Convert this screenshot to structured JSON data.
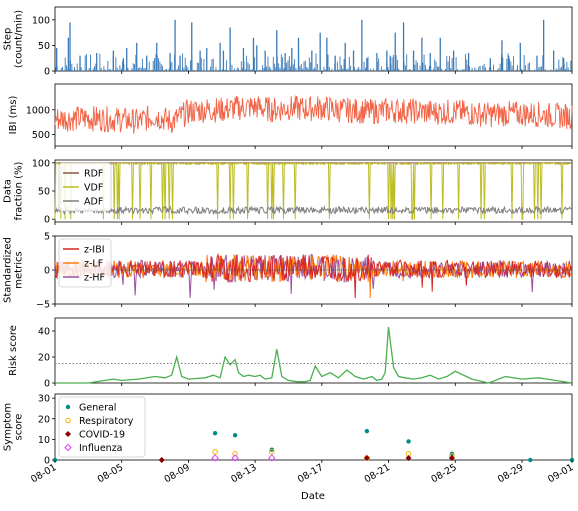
{
  "x_axis": {
    "label": "Date",
    "tick_labels": [
      "08-01",
      "08-05",
      "08-09",
      "08-13",
      "08-17",
      "08-21",
      "08-25",
      "08-29",
      "09-01"
    ],
    "tick_days": [
      0,
      4,
      8,
      12,
      16,
      20,
      24,
      28,
      31
    ],
    "range_days": [
      0,
      31
    ]
  },
  "chart_data": [
    {
      "type": "bar",
      "ylabel_lines": [
        "Step",
        "(count/min)"
      ],
      "ylim": [
        0,
        125
      ],
      "yticks": [
        0,
        50,
        100
      ],
      "ytick_labels": [
        "0",
        "50",
        "100"
      ],
      "color": "#3a7ab8",
      "series": [
        {
          "x_days": [
            0.1,
            0.8,
            0.9,
            1.5,
            2.5,
            3.5,
            4.1,
            4.3,
            4.9,
            5.5,
            6.1,
            6.9,
            7.2,
            7.5,
            8.2,
            8.7,
            9.1,
            9.9,
            10.1,
            10.5,
            11.3,
            11.9,
            12.1,
            12.6,
            13.3,
            13.8,
            14.2,
            14.6,
            15.4,
            15.9,
            16.3,
            16.8,
            17.4,
            17.9,
            18.4,
            18.7,
            19.3,
            19.9,
            20.1,
            20.4,
            20.9,
            21.5,
            22.0,
            22.5,
            23.1,
            23.9,
            24.8,
            26.1,
            26.8,
            27.2,
            27.9,
            28.9,
            29.3,
            29.9,
            30.5
          ],
          "values": [
            45,
            65,
            95,
            30,
            35,
            40,
            25,
            45,
            55,
            30,
            55,
            35,
            100,
            30,
            95,
            40,
            45,
            55,
            40,
            85,
            45,
            65,
            50,
            40,
            80,
            35,
            45,
            65,
            40,
            75,
            65,
            30,
            55,
            40,
            100,
            25,
            35,
            40,
            30,
            75,
            95,
            40,
            65,
            35,
            65,
            40,
            35,
            25,
            60,
            30,
            55,
            30,
            100,
            40,
            25
          ]
        }
      ]
    },
    {
      "type": "line",
      "ylabel_lines": [
        "IBI (ms)"
      ],
      "ylim": [
        270,
        1520
      ],
      "yticks": [
        500,
        1000
      ],
      "ytick_labels": [
        "500",
        "1000"
      ],
      "color": "#f26448",
      "baseline": [
        [
          0,
          820
        ],
        [
          2,
          830
        ],
        [
          4,
          800
        ],
        [
          5,
          760
        ],
        [
          6,
          880
        ],
        [
          7,
          760
        ],
        [
          8,
          960
        ],
        [
          9,
          1000
        ],
        [
          10,
          1000
        ],
        [
          11,
          1040
        ],
        [
          12,
          1060
        ],
        [
          13,
          1000
        ],
        [
          14,
          1040
        ],
        [
          15,
          1020
        ],
        [
          16,
          1040
        ],
        [
          17,
          1000
        ],
        [
          18,
          980
        ],
        [
          19,
          960
        ],
        [
          20,
          990
        ],
        [
          21,
          980
        ],
        [
          22,
          960
        ],
        [
          23,
          950
        ],
        [
          24,
          960
        ],
        [
          25,
          930
        ],
        [
          26,
          900
        ],
        [
          27,
          920
        ],
        [
          28,
          920
        ],
        [
          29,
          910
        ],
        [
          30,
          880
        ],
        [
          31,
          870
        ]
      ]
    },
    {
      "type": "line",
      "ylabel_lines": [
        "Data",
        "fraction (%)"
      ],
      "ylim": [
        -5,
        105
      ],
      "yticks": [
        0,
        50,
        100
      ],
      "ytick_labels": [
        "0",
        "50",
        "100"
      ],
      "series": [
        {
          "name": "RDF",
          "color": "#8c564b"
        },
        {
          "name": "VDF",
          "color": "#bcbd22"
        },
        {
          "name": "ADF",
          "color": "#7f7f7f"
        }
      ]
    },
    {
      "type": "line",
      "ylabel_lines": [
        "Standardized",
        "metrics"
      ],
      "ylim": [
        -5,
        5
      ],
      "yticks": [
        -5,
        0,
        5
      ],
      "ytick_labels": [
        "−5",
        "0",
        "5"
      ],
      "series": [
        {
          "name": "z-IBI",
          "color": "#d62728"
        },
        {
          "name": "z-LF",
          "color": "#ff7f0e"
        },
        {
          "name": "z-HF",
          "color": "#9b4ea0"
        }
      ]
    },
    {
      "type": "line",
      "ylabel_lines": [
        "Risk score"
      ],
      "ylim": [
        0,
        50
      ],
      "yticks": [
        0,
        20,
        40
      ],
      "ytick_labels": [
        "0",
        "20",
        "40"
      ],
      "color": "#4caf50",
      "threshold": 15,
      "series": [
        {
          "x_days": [
            0,
            1,
            2,
            3,
            3.5,
            4,
            5,
            6,
            6.6,
            7,
            7.3,
            7.6,
            8,
            9,
            9.5,
            9.9,
            10.2,
            10.5,
            10.8,
            11,
            11.3,
            11.6,
            12,
            12.3,
            12.6,
            13,
            13.3,
            13.6,
            14,
            14.5,
            15,
            15.3,
            15.6,
            16,
            16.5,
            17,
            17.5,
            18,
            18.5,
            19,
            19.3,
            19.6,
            19.8,
            20,
            20.3,
            20.6,
            21,
            21.5,
            22,
            22.5,
            23,
            23.5,
            24,
            25,
            26,
            27,
            28,
            29,
            30,
            31
          ],
          "values": [
            0,
            0,
            0,
            2,
            3,
            2,
            3,
            5,
            4,
            6,
            20,
            5,
            3,
            4,
            6,
            4,
            20,
            14,
            18,
            8,
            5,
            6,
            5,
            6,
            3,
            4,
            26,
            5,
            2,
            1,
            1,
            2,
            13,
            5,
            8,
            4,
            10,
            5,
            3,
            5,
            2,
            3,
            8,
            43,
            12,
            5,
            4,
            3,
            4,
            6,
            3,
            5,
            9,
            3,
            0,
            5,
            3,
            4,
            2,
            0
          ]
        }
      ]
    },
    {
      "type": "scatter",
      "ylabel_lines": [
        "Symptom",
        "score"
      ],
      "ylim": [
        0,
        32
      ],
      "yticks": [
        0,
        10,
        20,
        30
      ],
      "ytick_labels": [
        "0",
        "10",
        "20",
        "30"
      ],
      "series": [
        {
          "name": "General",
          "color": "#008b8b",
          "marker": "dot",
          "x_days": [
            0,
            6.4,
            9.6,
            10.8,
            13.0,
            18.7,
            21.2,
            23.8,
            28.5,
            31
          ],
          "values": [
            0,
            0,
            13,
            12,
            5,
            14,
            9,
            3,
            0,
            0
          ]
        },
        {
          "name": "Respiratory",
          "color": "#f5b800",
          "marker": "circle",
          "x_days": [
            9.6,
            10.8,
            13.0,
            18.7,
            21.2,
            23.8
          ],
          "values": [
            4,
            3,
            4,
            1,
            3,
            2
          ]
        },
        {
          "name": "COVID-19",
          "color": "#8b0000",
          "marker": "diamond",
          "x_days": [
            6.4,
            18.7,
            21.2,
            23.8
          ],
          "values": [
            0,
            1,
            1,
            1
          ]
        },
        {
          "name": "Influenza",
          "color": "#e040fb",
          "marker": "diamond-open",
          "x_days": [
            9.6,
            10.8,
            13.0
          ],
          "values": [
            1,
            1,
            1
          ]
        }
      ]
    }
  ]
}
